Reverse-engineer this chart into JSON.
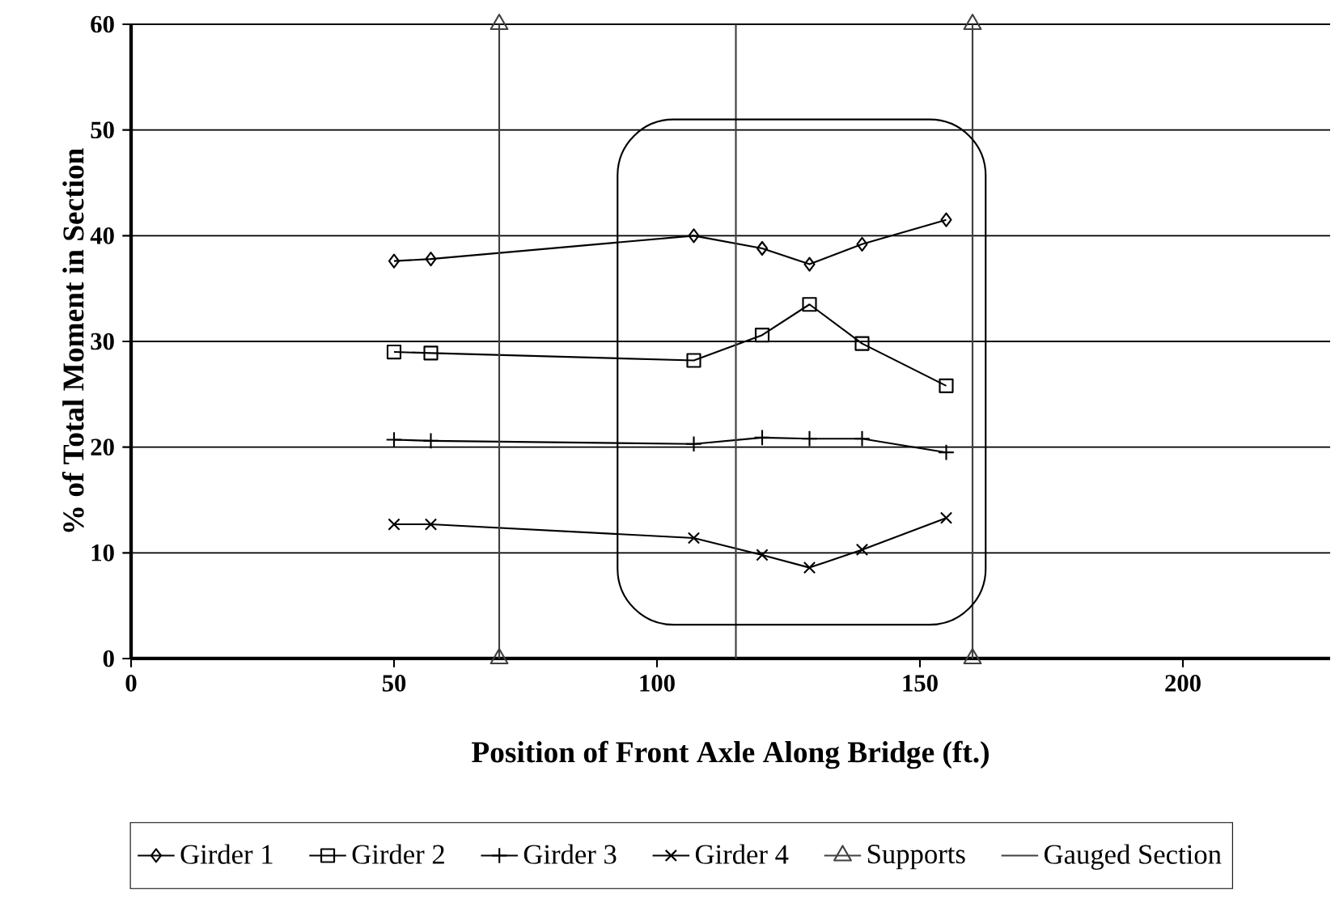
{
  "chart_data": {
    "type": "line",
    "xlabel": "Position of Front Axle Along Bridge (ft.)",
    "ylabel": "% of Total Moment in Section",
    "xlim": [
      0,
      228
    ],
    "xticks": [
      0,
      50,
      100,
      150,
      200
    ],
    "ylim": [
      0,
      60
    ],
    "yticks": [
      0,
      10,
      20,
      30,
      40,
      50,
      60
    ],
    "grid": "y",
    "legend": "bottom",
    "series": [
      {
        "name": "Girder 1",
        "color": "#000000",
        "marker": "diamond",
        "x": [
          50,
          57,
          107,
          120,
          129,
          139,
          155
        ],
        "values": [
          37.6,
          37.8,
          40.0,
          38.8,
          37.3,
          39.2,
          41.5
        ]
      },
      {
        "name": "Girder 2",
        "color": "#000000",
        "marker": "square",
        "x": [
          50,
          57,
          107,
          120,
          129,
          139,
          155
        ],
        "values": [
          29.0,
          28.9,
          28.2,
          30.6,
          33.5,
          29.8,
          25.8
        ]
      },
      {
        "name": "Girder 3",
        "color": "#000000",
        "marker": "plus",
        "x": [
          50,
          57,
          107,
          120,
          129,
          139,
          155
        ],
        "values": [
          20.7,
          20.6,
          20.3,
          20.9,
          20.8,
          20.8,
          19.5
        ]
      },
      {
        "name": "Girder 4",
        "color": "#000000",
        "marker": "cross",
        "x": [
          50,
          57,
          107,
          120,
          129,
          139,
          155
        ],
        "values": [
          12.7,
          12.7,
          11.4,
          9.8,
          8.6,
          10.3,
          13.3
        ]
      },
      {
        "name": "Supports",
        "color": "#404040",
        "marker": "triangle",
        "x": [
          70,
          70
        ],
        "values": [
          0,
          60
        ]
      },
      {
        "color": "#404040",
        "marker": "triangle",
        "x": [
          160,
          160
        ],
        "values": [
          60,
          0
        ]
      },
      {
        "name": "Gauged Section",
        "color": "#404040",
        "x": [
          115,
          115
        ],
        "values": [
          0,
          60
        ]
      }
    ]
  }
}
